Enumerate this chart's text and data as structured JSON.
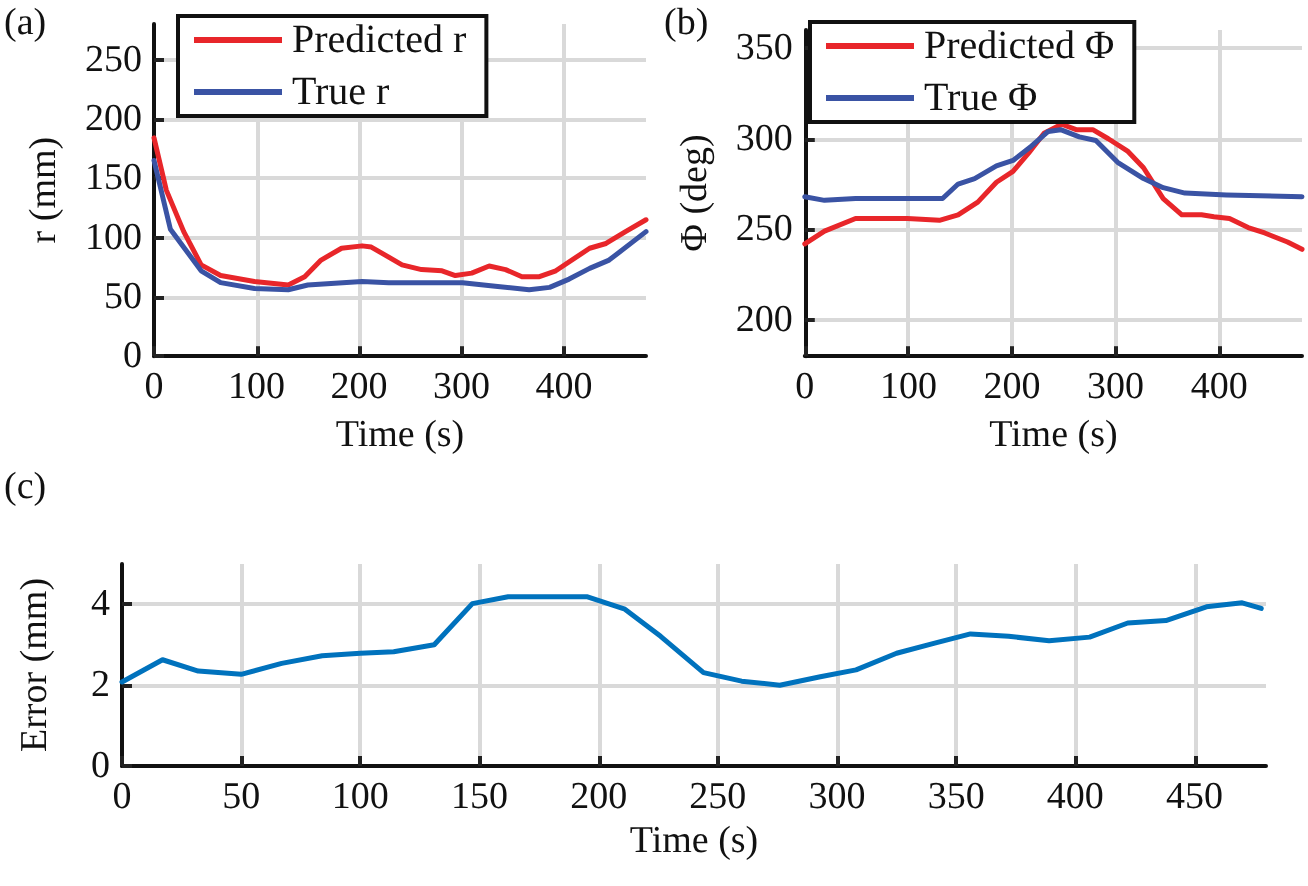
{
  "chart_data": [
    {
      "type": "line",
      "annotations": [
        "(a)"
      ],
      "xlabel": "Time (s)",
      "ylabel": "r (mm)",
      "xlim": [
        0,
        480
      ],
      "xticks": [
        0,
        100,
        200,
        300,
        400
      ],
      "ylim": [
        0,
        280
      ],
      "yticks": [
        0,
        50,
        100,
        150,
        200,
        250
      ],
      "grid": true,
      "legend": "top left",
      "line_style": "solid",
      "marker": "none",
      "series": [
        {
          "name": "Predicted r",
          "color": "#e8262a",
          "x": [
            0,
            12,
            29,
            46,
            65,
            98,
            131,
            147,
            163,
            183,
            203,
            212,
            242,
            261,
            281,
            294,
            310,
            327,
            343,
            359,
            376,
            392,
            425,
            441,
            460,
            480
          ],
          "values": [
            184,
            140,
            105,
            77,
            68,
            63,
            60,
            67,
            81,
            91,
            93,
            92,
            77,
            73,
            72,
            68,
            70,
            76,
            73,
            67,
            67,
            72,
            91,
            95,
            105,
            115
          ]
        },
        {
          "name": "True r",
          "color": "#3a53a4",
          "x": [
            0,
            16,
            46,
            65,
            98,
            131,
            150,
            203,
            229,
            268,
            301,
            333,
            366,
            386,
            405,
            425,
            444,
            480
          ],
          "values": [
            165,
            107,
            72,
            62,
            57,
            56,
            60,
            63,
            62,
            62,
            62,
            59,
            56,
            58,
            65,
            74,
            81,
            105
          ]
        }
      ]
    },
    {
      "type": "line",
      "annotations": [
        "(b)"
      ],
      "xlabel": "Time (s)",
      "ylabel": "Φ (deg)",
      "xlim": [
        0,
        480
      ],
      "xticks": [
        0,
        100,
        200,
        300,
        400
      ],
      "ylim": [
        180,
        360
      ],
      "yticks": [
        200,
        250,
        300,
        350
      ],
      "grid": true,
      "legend": "top left",
      "line_style": "solid",
      "marker": "none",
      "series": [
        {
          "name": "Predicted Φ",
          "color": "#e8262a",
          "x": [
            0,
            19,
            49,
            68,
            99,
            130,
            148,
            167,
            185,
            201,
            216,
            231,
            248,
            262,
            278,
            293,
            312,
            327,
            346,
            364,
            383,
            395,
            410,
            428,
            444,
            466,
            480
          ],
          "values": [
            242,
            249,
            256,
            256,
            256,
            255,
            258,
            265,
            276,
            282,
            292,
            303,
            308,
            305,
            305,
            300,
            293,
            284,
            267,
            258,
            258,
            257,
            256,
            251,
            248,
            243,
            239
          ]
        },
        {
          "name": "True Φ",
          "color": "#3a53a4",
          "x": [
            0,
            19,
            49,
            99,
            133,
            148,
            164,
            185,
            201,
            219,
            235,
            247,
            265,
            281,
            302,
            327,
            346,
            367,
            407,
            480
          ],
          "values": [
            268,
            266,
            267,
            267,
            267,
            275,
            278,
            285,
            288,
            296,
            304,
            305,
            301,
            299,
            287,
            278,
            273,
            270,
            269,
            268
          ]
        }
      ]
    },
    {
      "type": "line",
      "annotations": [
        "(c)"
      ],
      "xlabel": "Time (s)",
      "ylabel": "Error (mm)",
      "xlim": [
        0,
        480
      ],
      "xticks": [
        0,
        50,
        100,
        150,
        200,
        250,
        300,
        350,
        400,
        450
      ],
      "ylim": [
        0,
        5
      ],
      "yticks": [
        0,
        2,
        4
      ],
      "grid": true,
      "line_style": "solid",
      "marker": "none",
      "series": [
        {
          "color": "#0072bd",
          "x": [
            0,
            17,
            32,
            50,
            67,
            84,
            100,
            114,
            131,
            147,
            162,
            195,
            211,
            226,
            244,
            260,
            276,
            293,
            308,
            325,
            341,
            356,
            372,
            389,
            406,
            422,
            438,
            455,
            470,
            478
          ],
          "values": [
            2.08,
            2.63,
            2.35,
            2.27,
            2.54,
            2.73,
            2.79,
            2.83,
            3.0,
            4.02,
            4.19,
            4.19,
            3.88,
            3.21,
            2.31,
            2.1,
            2.0,
            2.21,
            2.38,
            2.79,
            3.04,
            3.27,
            3.21,
            3.1,
            3.19,
            3.54,
            3.6,
            3.94,
            4.04,
            3.9
          ]
        }
      ]
    }
  ]
}
